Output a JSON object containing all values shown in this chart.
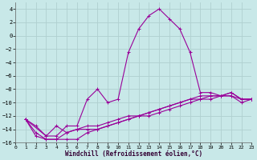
{
  "background_color": "#c8e8e8",
  "grid_color": "#b0d0d0",
  "line_color": "#990099",
  "xlabel": "Windchill (Refroidissement éolien,°C)",
  "xlim": [
    0,
    23
  ],
  "ylim": [
    -16,
    5
  ],
  "xticks": [
    0,
    1,
    2,
    3,
    4,
    5,
    6,
    7,
    8,
    9,
    10,
    11,
    12,
    13,
    14,
    15,
    16,
    17,
    18,
    19,
    20,
    21,
    22,
    23
  ],
  "yticks": [
    -16,
    -14,
    -12,
    -10,
    -8,
    -6,
    -4,
    -2,
    0,
    2,
    4
  ],
  "series": [
    {
      "x": [
        1,
        2,
        3,
        4,
        5,
        6,
        7,
        8,
        9,
        10,
        11,
        12,
        13,
        14,
        15,
        16,
        17,
        18,
        19,
        20,
        21,
        22,
        23
      ],
      "y": [
        -12.5,
        -13.5,
        -15.0,
        -15.0,
        -13.5,
        -13.5,
        -9.5,
        -8.0,
        -10.0,
        -9.5,
        -2.5,
        1.0,
        3.0,
        4.0,
        2.5,
        1.0,
        -2.5,
        -8.5,
        -8.5,
        -9.0,
        -8.5,
        -9.5,
        -9.5
      ]
    },
    {
      "x": [
        1,
        2,
        3,
        4,
        5,
        6,
        7,
        8,
        9,
        10,
        11,
        12,
        13,
        14,
        15,
        16,
        17,
        18,
        19,
        20,
        21,
        22,
        23
      ],
      "y": [
        -12.5,
        -14.5,
        -15.5,
        -15.5,
        -14.5,
        -14.0,
        -13.5,
        -13.5,
        -13.0,
        -12.5,
        -12.0,
        -12.0,
        -11.5,
        -11.0,
        -10.5,
        -10.0,
        -9.5,
        -9.0,
        -9.0,
        -9.0,
        -9.0,
        -9.5,
        -9.5
      ]
    },
    {
      "x": [
        1,
        2,
        3,
        4,
        5,
        6,
        7,
        8,
        9,
        10,
        11,
        12,
        13,
        14,
        15,
        16,
        17,
        18,
        19,
        20,
        21,
        22,
        23
      ],
      "y": [
        -12.5,
        -15.0,
        -15.5,
        -15.5,
        -15.5,
        -15.5,
        -14.5,
        -14.0,
        -13.5,
        -13.0,
        -12.5,
        -12.0,
        -12.0,
        -11.5,
        -11.0,
        -10.5,
        -10.0,
        -9.5,
        -9.5,
        -9.0,
        -9.0,
        -10.0,
        -9.5
      ]
    },
    {
      "x": [
        1,
        3,
        4,
        5,
        6,
        7,
        8,
        9,
        10,
        11,
        12,
        13,
        14,
        15,
        16,
        17,
        18,
        19,
        20,
        21,
        22,
        23
      ],
      "y": [
        -12.5,
        -15.0,
        -13.5,
        -14.5,
        -14.0,
        -14.0,
        -14.0,
        -13.5,
        -13.0,
        -12.5,
        -12.0,
        -11.5,
        -11.0,
        -10.5,
        -10.0,
        -9.5,
        -9.5,
        -9.0,
        -9.0,
        -8.5,
        -9.5,
        -9.5
      ]
    }
  ]
}
